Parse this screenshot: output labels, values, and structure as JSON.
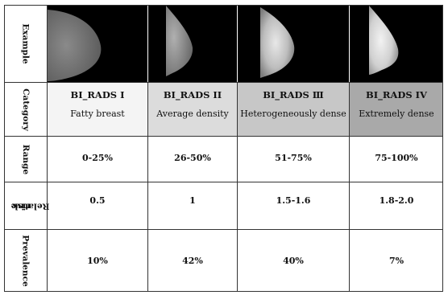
{
  "row_labels": {
    "example": "Example",
    "category": "Category",
    "range": "Range",
    "relative_risk": [
      "Relative",
      "risk"
    ],
    "prevalence": "Prevalence"
  },
  "columns": [
    {
      "title": "BI_RADS I",
      "desc": "Fatty breast",
      "range": "0-25%",
      "risk": "0.5",
      "prevalence": "10%",
      "shade": "#f4f4f4"
    },
    {
      "title": "BI_RADS II",
      "desc": "Average density",
      "range": "26-50%",
      "risk": "1",
      "prevalence": "42%",
      "shade": "#dcdcdc"
    },
    {
      "title": "BI_RADS Ⅲ",
      "desc": "Heterogeneously dense",
      "range": "51-75%",
      "risk": "1.5-1.6",
      "prevalence": "40%",
      "shade": "#c7c7c7"
    },
    {
      "title": "BI_RADS IV",
      "desc": "Extremely dense",
      "range": "75-100%",
      "risk": "1.8-2.0",
      "prevalence": "7%",
      "shade": "#a9a9a9"
    }
  ]
}
